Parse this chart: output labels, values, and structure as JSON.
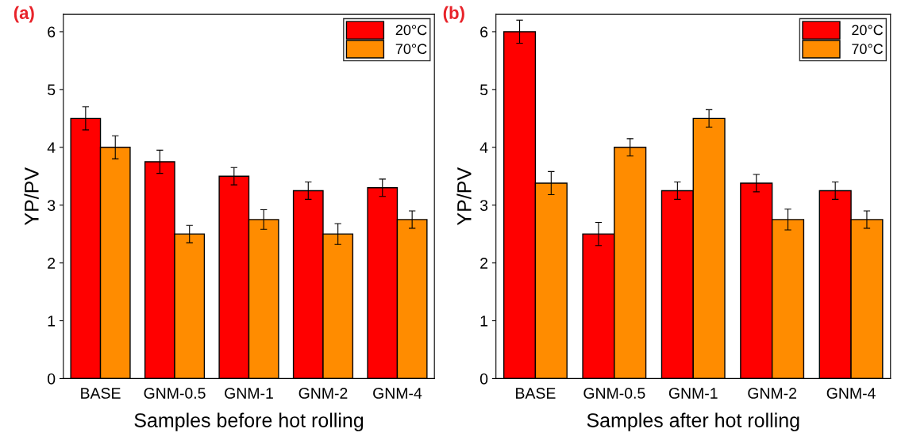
{
  "chart_data": [
    {
      "type": "bar",
      "title": "(a)",
      "xlabel": "Samples before hot rolling",
      "ylabel": "YP/PV",
      "categories": [
        "BASE",
        "GNM-0.5",
        "GNM-1",
        "GNM-2",
        "GNM-4"
      ],
      "series": [
        {
          "name": "20°C",
          "color": "#ff0000",
          "values": [
            4.5,
            3.75,
            3.5,
            3.25,
            3.3
          ],
          "errors": [
            0.2,
            0.2,
            0.15,
            0.15,
            0.15
          ]
        },
        {
          "name": "70°C",
          "color": "#ff8c00",
          "values": [
            4.0,
            2.5,
            2.75,
            2.5,
            2.75
          ],
          "errors": [
            0.2,
            0.15,
            0.17,
            0.18,
            0.15
          ]
        }
      ],
      "ylim": [
        0,
        6.3
      ],
      "yticks": [
        0,
        1,
        2,
        3,
        4,
        5,
        6
      ],
      "legend": "top right",
      "grid": false
    },
    {
      "type": "bar",
      "title": "(b)",
      "xlabel": "Samples after hot rolling",
      "ylabel": "YP/PV",
      "categories": [
        "BASE",
        "GNM-0.5",
        "GNM-1",
        "GNM-2",
        "GNM-4"
      ],
      "series": [
        {
          "name": "20°C",
          "color": "#ff0000",
          "values": [
            6.0,
            2.5,
            3.25,
            3.38,
            3.25
          ],
          "errors": [
            0.2,
            0.2,
            0.15,
            0.15,
            0.15
          ]
        },
        {
          "name": "70°C",
          "color": "#ff8c00",
          "values": [
            3.38,
            4.0,
            4.5,
            2.75,
            2.75
          ],
          "errors": [
            0.2,
            0.15,
            0.15,
            0.18,
            0.15
          ]
        }
      ],
      "ylim": [
        0,
        6.3
      ],
      "yticks": [
        0,
        1,
        2,
        3,
        4,
        5,
        6
      ],
      "legend": "top right",
      "grid": false
    }
  ]
}
